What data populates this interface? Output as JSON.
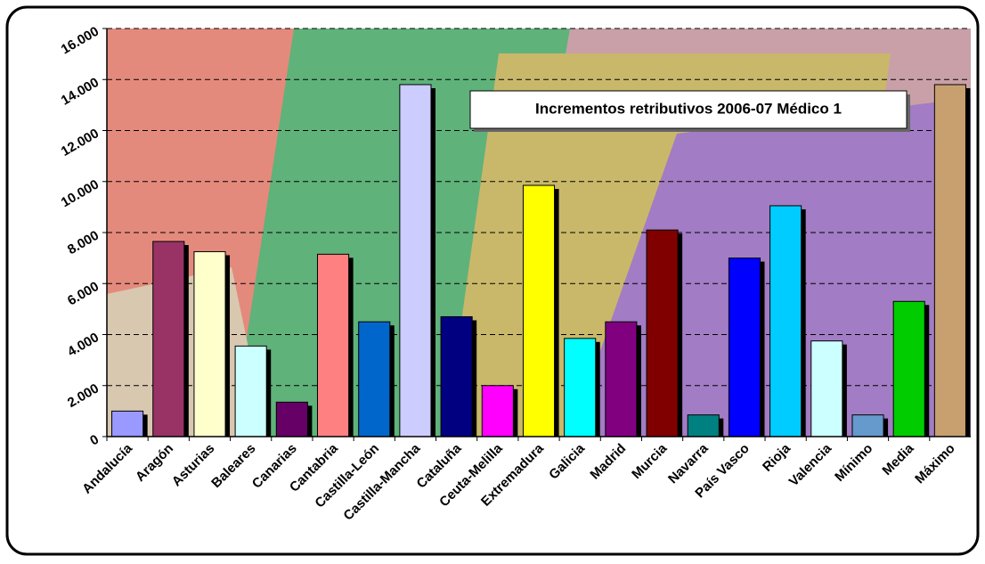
{
  "chart_data": {
    "type": "bar",
    "title": "Incrementos retributivos 2006-07 Médico 1",
    "categories": [
      "Andalucía",
      "Aragón",
      "Asturias",
      "Baleares",
      "Canarias",
      "Cantabria",
      "Castilla-León",
      "Castilla-Mancha",
      "Cataluña",
      "Ceuta-Melilla",
      "Extremadura",
      "Galicia",
      "Madrid",
      "Murcia",
      "Navarra",
      "País Vasco",
      "Rioja",
      "Valencia",
      "Mínimo",
      "Media",
      "Máximo"
    ],
    "values": [
      1000,
      7650,
      7250,
      3550,
      1350,
      7150,
      4500,
      13800,
      4700,
      2000,
      9850,
      3850,
      4500,
      8100,
      850,
      7000,
      9050,
      3750,
      850,
      5300,
      13800
    ],
    "colors": [
      "#9999ff",
      "#993366",
      "#ffffcc",
      "#ccffff",
      "#660066",
      "#ff8080",
      "#0066cc",
      "#ccccff",
      "#000080",
      "#ff00ff",
      "#ffff00",
      "#00ffff",
      "#800080",
      "#800000",
      "#008080",
      "#0000ff",
      "#00ccff",
      "#ccffff",
      "#6699cc",
      "#00cc00",
      "#c8a070"
    ],
    "ylim": [
      0,
      16000
    ],
    "yticks": [
      0,
      {
        "value": 2000,
        "label": "2.000"
      },
      {
        "value": 4000,
        "label": "4.000"
      },
      {
        "value": 6000,
        "label": "6.000"
      },
      {
        "value": 8000,
        "label": "8.000"
      },
      {
        "value": 10000,
        "label": "10.000"
      },
      {
        "value": 12000,
        "label": "12.000"
      },
      {
        "value": 14000,
        "label": "14.000"
      },
      {
        "value": 16000,
        "label": "16.000"
      }
    ],
    "grid": true
  }
}
